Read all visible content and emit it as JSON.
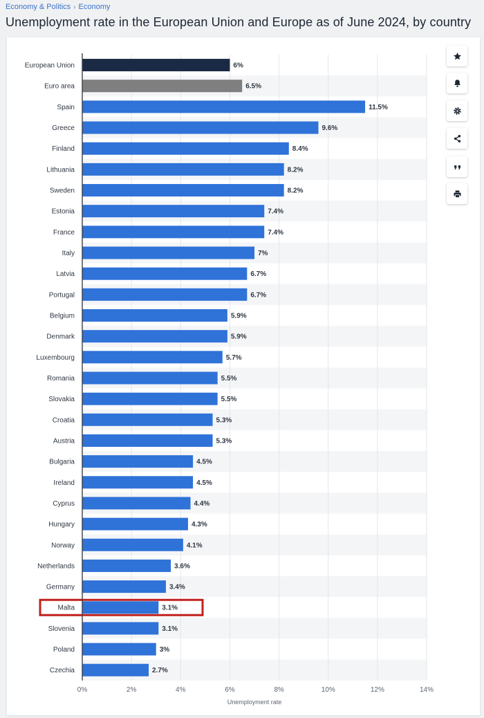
{
  "breadcrumb": {
    "items": [
      "Economy & Politics",
      "Economy"
    ],
    "separator": "›"
  },
  "page_title": "Unemployment rate in the European Union and Europe as of June 2024, by country",
  "colors": {
    "eu": "#1a2a44",
    "euro_area": "#7f7f7f",
    "country": "#2f72d8",
    "highlight_box": "#c0201d"
  },
  "toolbar_icons": [
    "star-icon",
    "bell-icon",
    "gear-icon",
    "share-icon",
    "quote-icon",
    "print-icon"
  ],
  "chart_data": {
    "type": "bar",
    "orientation": "horizontal",
    "categories": [
      "European Union",
      "Euro area",
      "Spain",
      "Greece",
      "Finland",
      "Lithuania",
      "Sweden",
      "Estonia",
      "France",
      "Italy",
      "Latvia",
      "Portugal",
      "Belgium",
      "Denmark",
      "Luxembourg",
      "Romania",
      "Slovakia",
      "Croatia",
      "Austria",
      "Bulgaria",
      "Ireland",
      "Cyprus",
      "Hungary",
      "Norway",
      "Netherlands",
      "Germany",
      "Malta",
      "Slovenia",
      "Poland",
      "Czechia"
    ],
    "values": [
      6,
      6.5,
      11.5,
      9.6,
      8.4,
      8.2,
      8.2,
      7.4,
      7.4,
      7,
      6.7,
      6.7,
      5.9,
      5.9,
      5.7,
      5.5,
      5.5,
      5.3,
      5.3,
      4.5,
      4.5,
      4.4,
      4.3,
      4.1,
      3.6,
      3.4,
      3.1,
      3.1,
      3,
      2.7
    ],
    "value_labels": [
      "6%",
      "6.5%",
      "11.5%",
      "9.6%",
      "8.4%",
      "8.2%",
      "8.2%",
      "7.4%",
      "7.4%",
      "7%",
      "6.7%",
      "6.7%",
      "5.9%",
      "5.9%",
      "5.7%",
      "5.5%",
      "5.5%",
      "5.3%",
      "5.3%",
      "4.5%",
      "4.5%",
      "4.4%",
      "4.3%",
      "4.1%",
      "3.6%",
      "3.4%",
      "3.1%",
      "3.1%",
      "3%",
      "2.7%"
    ],
    "xlabel": "Unemployment rate",
    "xlim": [
      0,
      14
    ],
    "xticks": [
      0,
      2,
      4,
      6,
      8,
      10,
      12,
      14
    ],
    "xtick_labels": [
      "0%",
      "2%",
      "4%",
      "6%",
      "8%",
      "10%",
      "12%",
      "14%"
    ],
    "grid": true,
    "highlighted_category": "Malta"
  }
}
